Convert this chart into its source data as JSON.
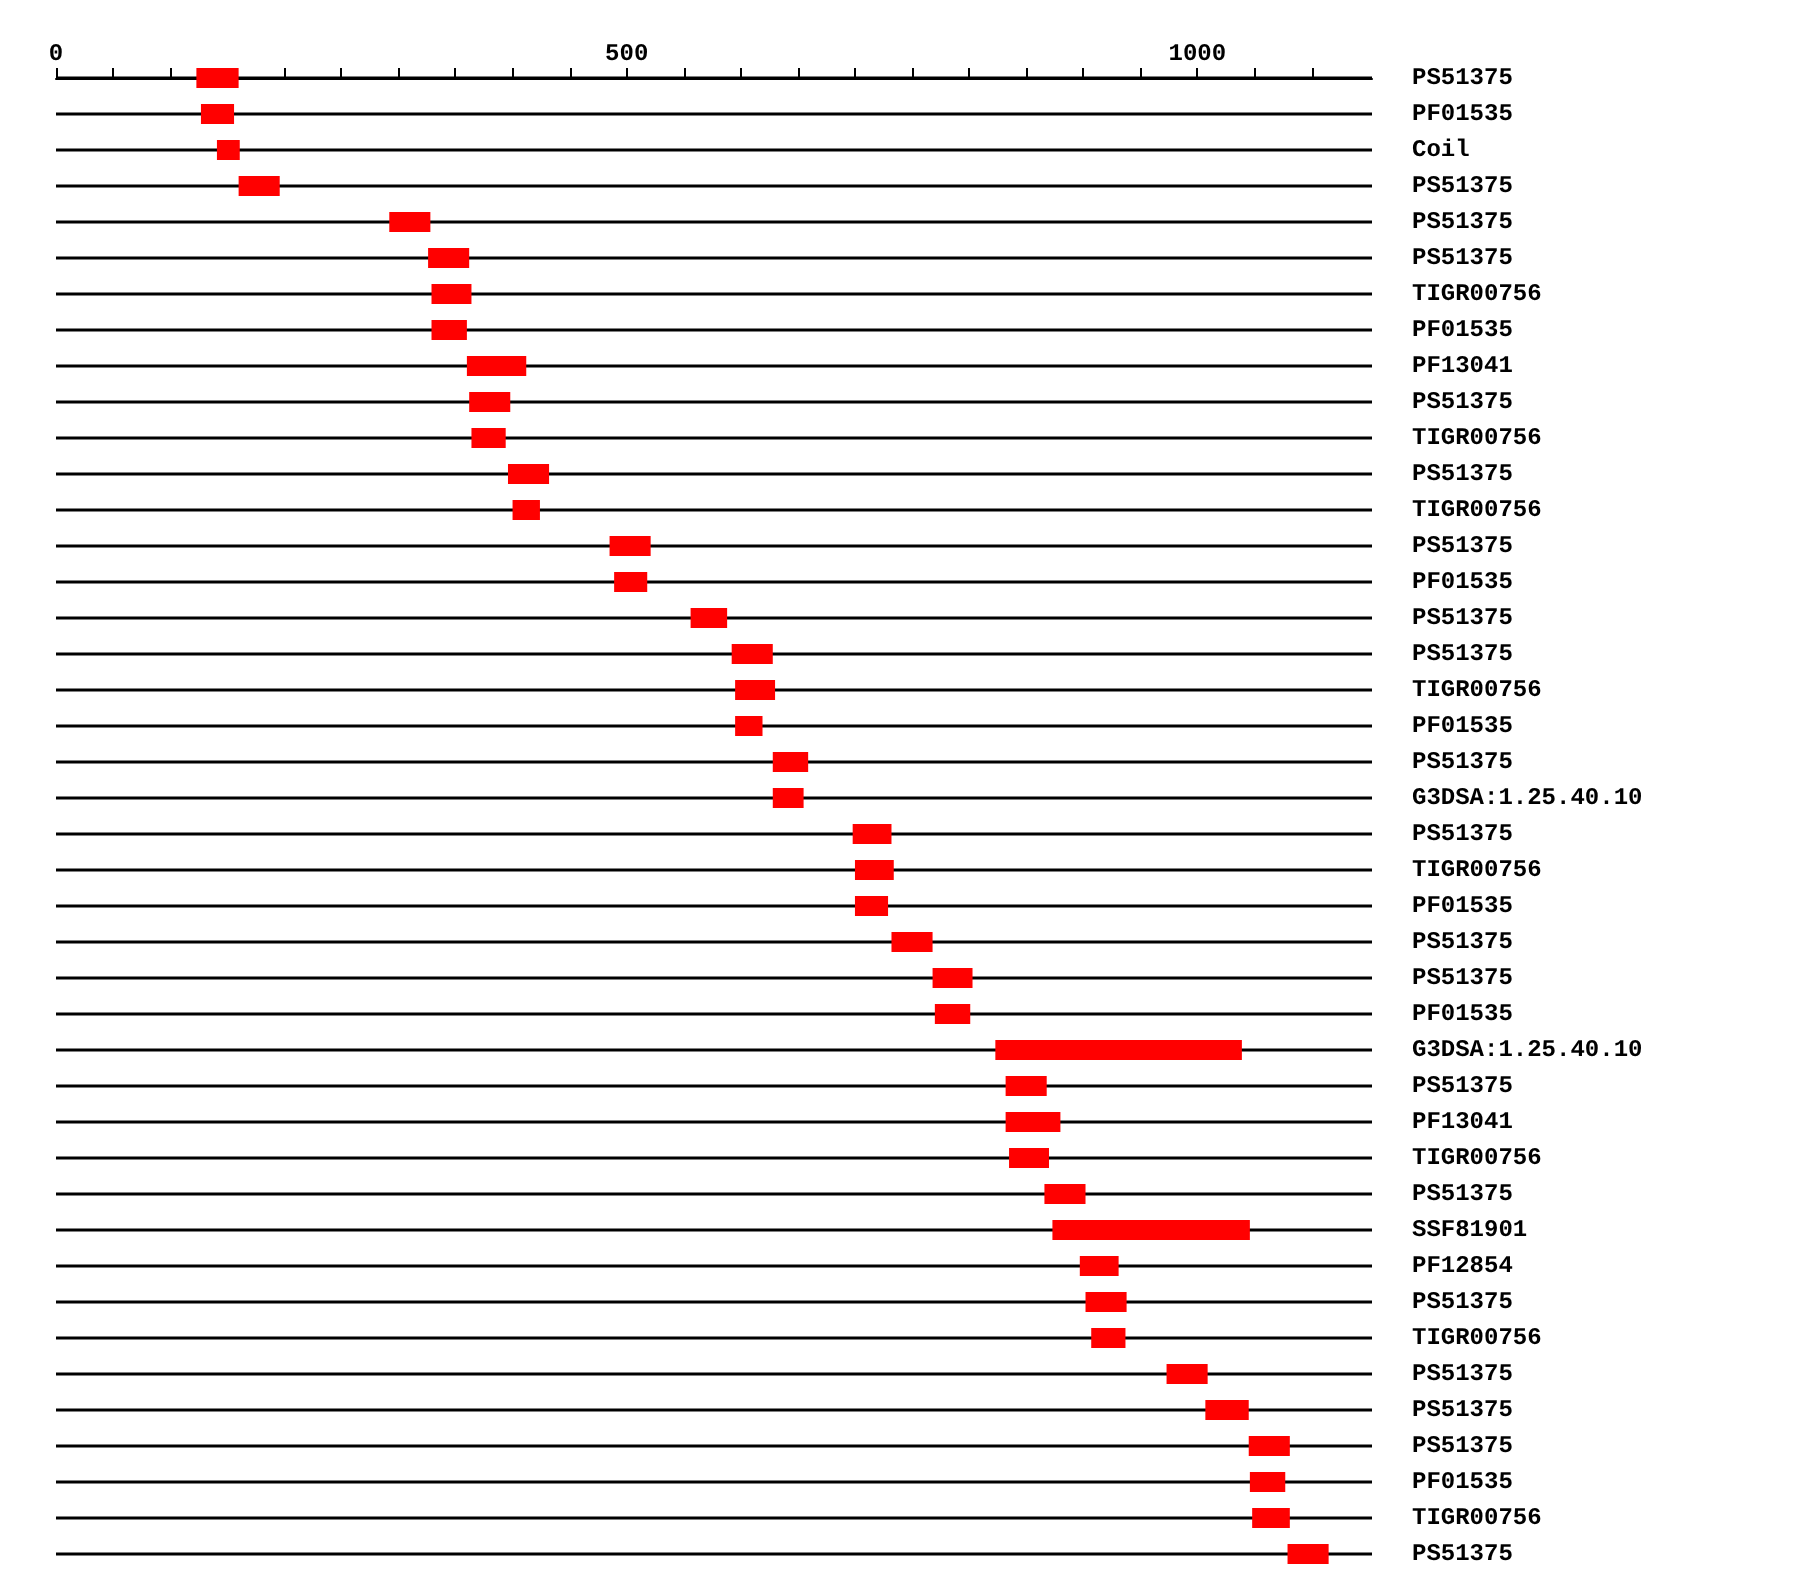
{
  "chart_data": {
    "type": "bar",
    "orientation": "horizontal",
    "categories": [
      "PS51375",
      "PF01535",
      "Coil",
      "PS51375",
      "PS51375",
      "PS51375",
      "TIGR00756",
      "PF01535",
      "PF13041",
      "PS51375",
      "TIGR00756",
      "PS51375",
      "TIGR00756",
      "PS51375",
      "PF01535",
      "PS51375",
      "PS51375",
      "TIGR00756",
      "PF01535",
      "PS51375",
      "G3DSA:1.25.40.10",
      "PS51375",
      "TIGR00756",
      "PF01535",
      "PS51375",
      "PS51375",
      "PF01535",
      "G3DSA:1.25.40.10",
      "PS51375",
      "PF13041",
      "TIGR00756",
      "PS51375",
      "SSF81901",
      "PF12854",
      "PS51375",
      "TIGR00756",
      "PS51375",
      "PS51375",
      "PS51375",
      "PF01535",
      "TIGR00756",
      "PS51375"
    ],
    "base": [
      123,
      127,
      141,
      160,
      292,
      326,
      329,
      329,
      360,
      362,
      364,
      396,
      400,
      485,
      489,
      556,
      592,
      595,
      595,
      628,
      628,
      698,
      700,
      700,
      732,
      768,
      770,
      823,
      832,
      832,
      835,
      866,
      873,
      897,
      902,
      907,
      973,
      1007,
      1045,
      1046,
      1048,
      1079
    ],
    "values": [
      37,
      29,
      20,
      36,
      36,
      36,
      35,
      31,
      52,
      36,
      30,
      36,
      24,
      36,
      29,
      32,
      36,
      35,
      24,
      31,
      27,
      34,
      34,
      29,
      36,
      35,
      31,
      216,
      36,
      48,
      35,
      36,
      173,
      34,
      36,
      30,
      36,
      38,
      36,
      31,
      33,
      36
    ],
    "color": "#ff0000",
    "xlim": [
      0,
      1153
    ],
    "xticks": [
      0,
      {
        "value": 50,
        "label": null
      },
      {
        "value": 100,
        "label": null
      },
      {
        "value": 150,
        "label": null
      },
      {
        "value": 200,
        "label": null
      },
      {
        "value": 250,
        "label": null
      },
      {
        "value": 300,
        "label": null
      },
      {
        "value": 350,
        "label": null
      },
      {
        "value": 400,
        "label": null
      },
      {
        "value": 450,
        "label": null
      },
      500,
      {
        "value": 550,
        "label": null
      },
      {
        "value": 600,
        "label": null
      },
      {
        "value": 650,
        "label": null
      },
      {
        "value": 700,
        "label": null
      },
      {
        "value": 750,
        "label": null
      },
      {
        "value": 800,
        "label": null
      },
      {
        "value": 850,
        "label": null
      },
      {
        "value": 900,
        "label": null
      },
      {
        "value": 950,
        "label": null
      },
      1000,
      {
        "value": 1050,
        "label": null
      },
      {
        "value": 1100,
        "label": null
      }
    ],
    "grid": "y"
  }
}
